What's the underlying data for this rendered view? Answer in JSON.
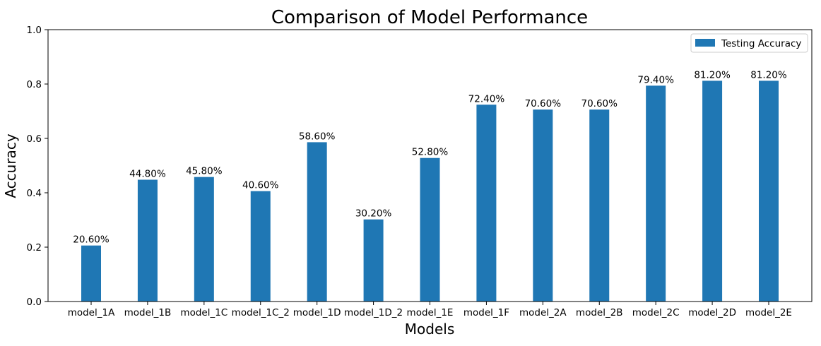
{
  "chart_data": {
    "type": "bar",
    "title": "Comparison of Model Performance",
    "xlabel": "Models",
    "ylabel": "Accuracy",
    "ylim": [
      0,
      1
    ],
    "yticks": [
      "0.0",
      "0.2",
      "0.4",
      "0.6",
      "0.8",
      "1.0"
    ],
    "grid": false,
    "legend_position": "top-right",
    "categories": [
      "model_1A",
      "model_1B",
      "model_1C",
      "model_1C_2",
      "model_1D",
      "model_1D_2",
      "model_1E",
      "model_1F",
      "model_2A",
      "model_2B",
      "model_2C",
      "model_2D",
      "model_2E"
    ],
    "series": [
      {
        "name": "Testing Accuracy",
        "color": "#1f77b4",
        "values": [
          0.206,
          0.448,
          0.458,
          0.406,
          0.586,
          0.302,
          0.528,
          0.724,
          0.706,
          0.706,
          0.794,
          0.812,
          0.812
        ],
        "data_labels": [
          "20.60%",
          "44.80%",
          "45.80%",
          "40.60%",
          "58.60%",
          "30.20%",
          "52.80%",
          "72.40%",
          "70.60%",
          "70.60%",
          "79.40%",
          "81.20%",
          "81.20%"
        ]
      }
    ]
  }
}
